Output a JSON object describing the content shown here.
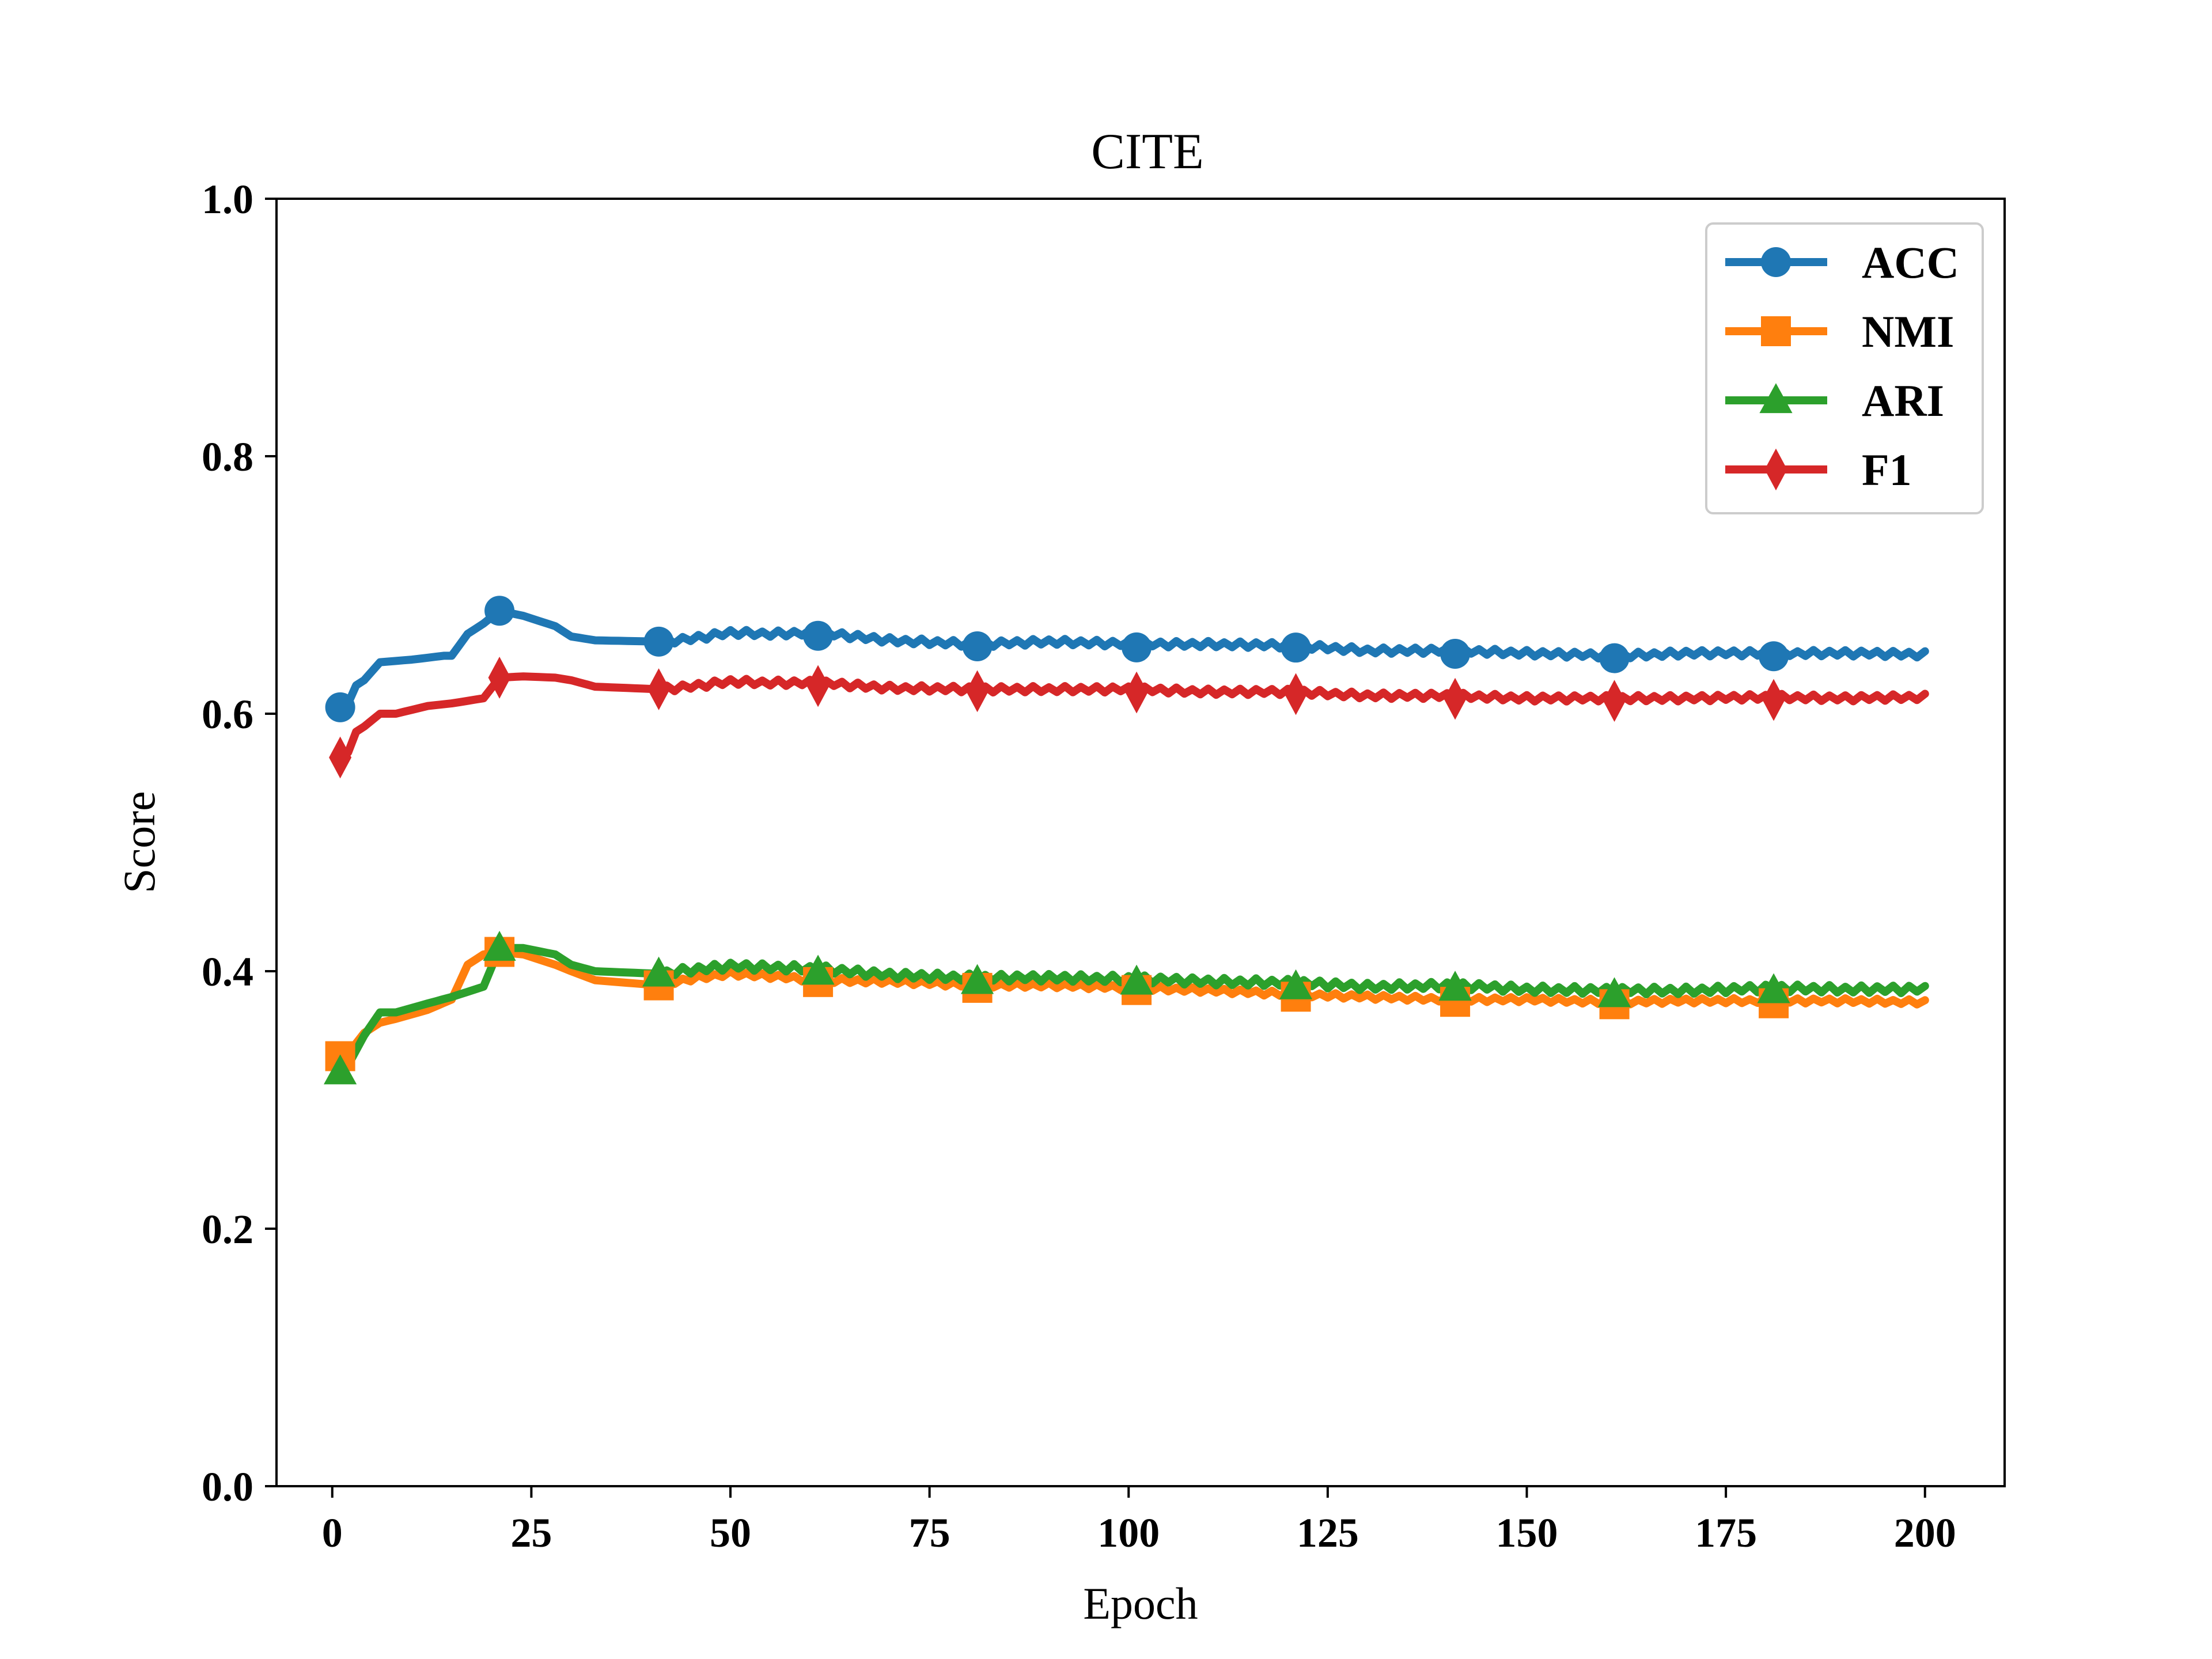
{
  "chart_data": {
    "type": "line",
    "title": "CITE",
    "xlabel": "Epoch",
    "ylabel": "Score",
    "xlim": [
      -7,
      210
    ],
    "ylim": [
      0.0,
      1.0
    ],
    "xticks": [
      0,
      25,
      50,
      75,
      100,
      125,
      150,
      175,
      200
    ],
    "xtick_labels": [
      "0",
      "25",
      "50",
      "75",
      "100",
      "125",
      "150",
      "175",
      "200"
    ],
    "yticks": [
      0.0,
      0.2,
      0.4,
      0.6,
      0.8,
      1.0
    ],
    "ytick_labels": [
      "0.0",
      "0.2",
      "0.4",
      "0.6",
      "0.8",
      "1.0"
    ],
    "grid": false,
    "legend_position": "top-right",
    "marker_every": 20,
    "x_start": 1,
    "series": [
      {
        "name": "ACC",
        "color": "#1f77b4",
        "marker": "circle",
        "anchors": [
          [
            1,
            0.605
          ],
          [
            2,
            0.608
          ],
          [
            3,
            0.622
          ],
          [
            4,
            0.626
          ],
          [
            6,
            0.64
          ],
          [
            10,
            0.642
          ],
          [
            14,
            0.645
          ],
          [
            15,
            0.645
          ],
          [
            17,
            0.662
          ],
          [
            19,
            0.67
          ],
          [
            21,
            0.68
          ],
          [
            24,
            0.676
          ],
          [
            28,
            0.668
          ],
          [
            30,
            0.66
          ],
          [
            33,
            0.657
          ],
          [
            41,
            0.656
          ],
          [
            45,
            0.658
          ],
          [
            50,
            0.663
          ],
          [
            55,
            0.662
          ],
          [
            61,
            0.663
          ],
          [
            70,
            0.657
          ],
          [
            81,
            0.654
          ],
          [
            90,
            0.656
          ],
          [
            101,
            0.654
          ],
          [
            110,
            0.654
          ],
          [
            121,
            0.653
          ],
          [
            130,
            0.649
          ],
          [
            141,
            0.649
          ],
          [
            150,
            0.647
          ],
          [
            161,
            0.645
          ],
          [
            170,
            0.647
          ],
          [
            181,
            0.647
          ],
          [
            190,
            0.647
          ],
          [
            200,
            0.646
          ]
        ],
        "jitter_from": 42,
        "jitter_amplitude": 0.005
      },
      {
        "name": "NMI",
        "color": "#ff7f0e",
        "marker": "square",
        "anchors": [
          [
            1,
            0.334
          ],
          [
            2,
            0.336
          ],
          [
            4,
            0.352
          ],
          [
            6,
            0.36
          ],
          [
            8,
            0.363
          ],
          [
            12,
            0.37
          ],
          [
            15,
            0.378
          ],
          [
            17,
            0.405
          ],
          [
            19,
            0.413
          ],
          [
            21,
            0.415
          ],
          [
            24,
            0.413
          ],
          [
            28,
            0.405
          ],
          [
            30,
            0.4
          ],
          [
            33,
            0.393
          ],
          [
            41,
            0.389
          ],
          [
            45,
            0.394
          ],
          [
            50,
            0.398
          ],
          [
            55,
            0.396
          ],
          [
            61,
            0.393
          ],
          [
            70,
            0.392
          ],
          [
            81,
            0.389
          ],
          [
            90,
            0.389
          ],
          [
            101,
            0.387
          ],
          [
            110,
            0.385
          ],
          [
            121,
            0.382
          ],
          [
            130,
            0.38
          ],
          [
            141,
            0.378
          ],
          [
            150,
            0.378
          ],
          [
            161,
            0.376
          ],
          [
            170,
            0.377
          ],
          [
            181,
            0.377
          ],
          [
            190,
            0.377
          ],
          [
            200,
            0.376
          ]
        ],
        "jitter_from": 42,
        "jitter_amplitude": 0.004
      },
      {
        "name": "ARI",
        "color": "#2ca02c",
        "marker": "triangle",
        "anchors": [
          [
            1,
            0.322
          ],
          [
            2,
            0.327
          ],
          [
            4,
            0.35
          ],
          [
            6,
            0.368
          ],
          [
            8,
            0.368
          ],
          [
            12,
            0.375
          ],
          [
            15,
            0.38
          ],
          [
            19,
            0.388
          ],
          [
            21,
            0.418
          ],
          [
            24,
            0.418
          ],
          [
            28,
            0.413
          ],
          [
            30,
            0.405
          ],
          [
            33,
            0.4
          ],
          [
            41,
            0.398
          ],
          [
            45,
            0.401
          ],
          [
            50,
            0.404
          ],
          [
            55,
            0.403
          ],
          [
            61,
            0.402
          ],
          [
            70,
            0.397
          ],
          [
            81,
            0.395
          ],
          [
            90,
            0.395
          ],
          [
            101,
            0.394
          ],
          [
            110,
            0.392
          ],
          [
            121,
            0.391
          ],
          [
            130,
            0.388
          ],
          [
            141,
            0.389
          ],
          [
            150,
            0.386
          ],
          [
            161,
            0.385
          ],
          [
            170,
            0.385
          ],
          [
            181,
            0.387
          ],
          [
            190,
            0.386
          ],
          [
            200,
            0.386
          ]
        ],
        "jitter_from": 42,
        "jitter_amplitude": 0.006
      },
      {
        "name": "F1",
        "color": "#d62728",
        "marker": "diamond",
        "anchors": [
          [
            1,
            0.566
          ],
          [
            2,
            0.57
          ],
          [
            3,
            0.586
          ],
          [
            4,
            0.59
          ],
          [
            6,
            0.6
          ],
          [
            8,
            0.6
          ],
          [
            12,
            0.606
          ],
          [
            15,
            0.608
          ],
          [
            19,
            0.612
          ],
          [
            21,
            0.628
          ],
          [
            24,
            0.629
          ],
          [
            28,
            0.628
          ],
          [
            30,
            0.626
          ],
          [
            33,
            0.621
          ],
          [
            41,
            0.619
          ],
          [
            45,
            0.621
          ],
          [
            50,
            0.625
          ],
          [
            55,
            0.624
          ],
          [
            61,
            0.624
          ],
          [
            70,
            0.62
          ],
          [
            81,
            0.619
          ],
          [
            90,
            0.619
          ],
          [
            101,
            0.619
          ],
          [
            110,
            0.617
          ],
          [
            121,
            0.617
          ],
          [
            130,
            0.614
          ],
          [
            141,
            0.614
          ],
          [
            150,
            0.612
          ],
          [
            161,
            0.612
          ],
          [
            170,
            0.612
          ],
          [
            181,
            0.613
          ],
          [
            190,
            0.612
          ],
          [
            200,
            0.613
          ]
        ],
        "jitter_from": 42,
        "jitter_amplitude": 0.005
      }
    ]
  }
}
